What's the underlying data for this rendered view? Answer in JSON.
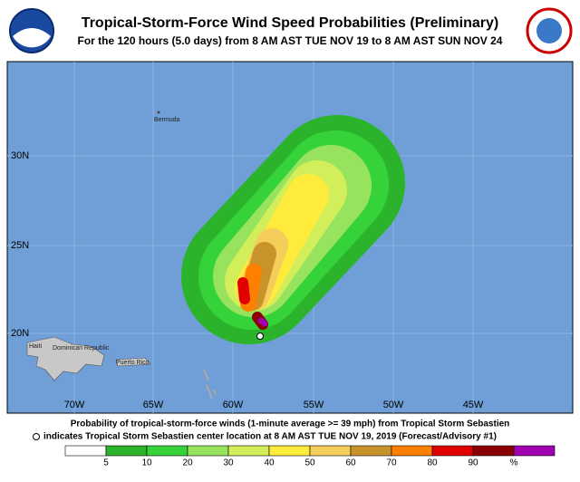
{
  "header": {
    "title": "Tropical-Storm-Force Wind Speed Probabilities (Preliminary)",
    "subtitle": "For the 120 hours (5.0 days) from 8 AM AST TUE NOV 19 to 8 AM AST SUN NOV 24"
  },
  "map": {
    "lat_labels": [
      "30N",
      "25N",
      "20N"
    ],
    "lon_labels": [
      "70W",
      "65W",
      "60W",
      "55W",
      "50W",
      "45W"
    ],
    "places": [
      "Bermuda",
      "Haiti",
      "Dominican Republic",
      "Puerto Rico"
    ]
  },
  "footer": {
    "line1": "Probability of tropical-storm-force winds (1-minute average >= 39 mph) from Tropical Storm Sebastien",
    "line2": "indicates Tropical Storm Sebastien center location at 8 AM AST TUE NOV 19, 2019 (Forecast/Advisory #1)"
  },
  "legend": {
    "labels": [
      "5",
      "10",
      "20",
      "30",
      "40",
      "50",
      "60",
      "70",
      "80",
      "90",
      "%"
    ],
    "colors": [
      "#ffffff",
      "#2bb42b",
      "#36d23a",
      "#98e35e",
      "#d2ee5a",
      "#ffeb3b",
      "#f5cd5a",
      "#c8932a",
      "#ff7f00",
      "#e00000",
      "#8a0000",
      "#a000b0"
    ]
  }
}
